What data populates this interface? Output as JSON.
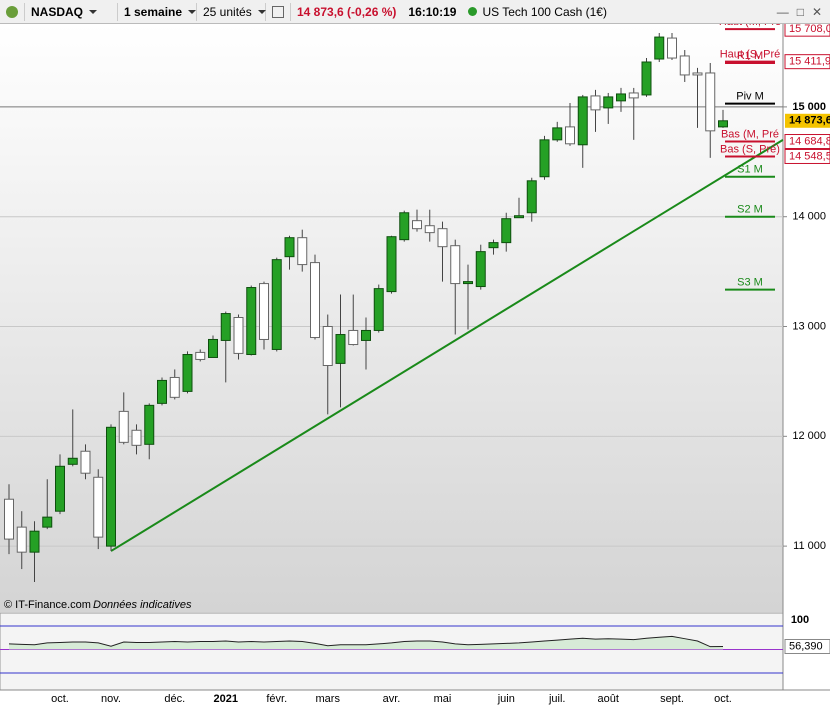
{
  "toolbar": {
    "symbol": "NASDAQ",
    "period": "1 semaine",
    "units": "25 unités",
    "quote": "14 873,6 (-0,26 %)",
    "time": "16:10:19",
    "instrument": "US Tech 100 Cash (1€)"
  },
  "chart_data": {
    "type": "candlestick",
    "source": "© IT-Finance.com",
    "note": "Données indicatives",
    "categories": [
      null,
      null,
      null,
      null,
      "oct.",
      null,
      null,
      null,
      "nov.",
      null,
      null,
      null,
      null,
      "déc.",
      null,
      null,
      null,
      "2021",
      null,
      null,
      null,
      "févr.",
      null,
      null,
      null,
      "mars",
      null,
      null,
      null,
      null,
      "avr.",
      null,
      null,
      null,
      "mai",
      null,
      null,
      null,
      null,
      "juin",
      null,
      null,
      null,
      "juil.",
      null,
      null,
      null,
      "août",
      null,
      null,
      null,
      null,
      "sept.",
      null,
      null,
      null,
      "oct."
    ],
    "open": [
      11427,
      11173,
      10945,
      11173,
      11318,
      11745,
      11864,
      11627,
      11000,
      12227,
      12055,
      11927,
      12300,
      12536,
      12409,
      12764,
      12718,
      12873,
      13082,
      12745,
      13391,
      12791,
      13636,
      13809,
      13582,
      13000,
      12664,
      12964,
      12873,
      12964,
      13318,
      13791,
      13964,
      13918,
      13891,
      13736,
      13391,
      13364,
      13718,
      13764,
      13991,
      14036,
      14364,
      14700,
      14818,
      14655,
      15100,
      14991,
      15055,
      15127,
      15109,
      15436,
      15627,
      15464,
      15309,
      15309,
      14818
    ],
    "high": [
      11564,
      11318,
      11227,
      11609,
      11836,
      12245,
      11927,
      11700,
      12109,
      12400,
      12109,
      12300,
      12536,
      12609,
      12773,
      12791,
      12918,
      13136,
      13109,
      13373,
      13409,
      13627,
      13827,
      13882,
      13655,
      13109,
      13291,
      13291,
      13082,
      13382,
      13827,
      14055,
      14064,
      14064,
      13955,
      13791,
      13564,
      13745,
      13791,
      14036,
      14173,
      14355,
      14736,
      14864,
      15036,
      15109,
      15155,
      15127,
      15173,
      15173,
      15445,
      15673,
      15673,
      15518,
      15355,
      15400,
      14973
    ],
    "low": [
      10927,
      10791,
      10673,
      11155,
      11291,
      11727,
      11609,
      10973,
      10955,
      11927,
      11836,
      11791,
      12282,
      12336,
      12391,
      12682,
      12718,
      12491,
      12700,
      12736,
      12791,
      12773,
      13518,
      13500,
      12882,
      12200,
      12264,
      12827,
      12609,
      12945,
      13300,
      13773,
      13864,
      13773,
      13409,
      12927,
      12973,
      13336,
      13655,
      13682,
      13991,
      13955,
      14336,
      14682,
      14645,
      14445,
      14773,
      14845,
      14955,
      14700,
      15091,
      15409,
      15427,
      15227,
      14809,
      14536,
      14809
    ],
    "close": [
      11064,
      10945,
      11136,
      11264,
      11727,
      11800,
      11664,
      11082,
      12082,
      11945,
      11918,
      12282,
      12509,
      12355,
      12745,
      12700,
      12882,
      13118,
      12755,
      13355,
      12882,
      13609,
      13809,
      13564,
      12900,
      12645,
      12927,
      12836,
      12964,
      13345,
      13818,
      14036,
      13891,
      13855,
      13727,
      13391,
      13409,
      13682,
      13764,
      13982,
      14009,
      14327,
      14700,
      14809,
      14664,
      15091,
      14973,
      15091,
      15118,
      15082,
      15409,
      15636,
      15445,
      15291,
      15291,
      14782,
      14873.6
    ],
    "up_color": "#25a025",
    "down_color": "#ffffff",
    "ylim": [
      10400,
      15755
    ],
    "yticks": [
      {
        "value": 11000,
        "label": "11 000"
      },
      {
        "value": 12000,
        "label": "12 000"
      },
      {
        "value": 13000,
        "label": "13 000"
      },
      {
        "value": 14000,
        "label": "14 000"
      },
      {
        "value": 15000,
        "label": "15 000"
      }
    ],
    "grid": true,
    "last": {
      "value": 14873.6,
      "label": "14 873,6",
      "color": "#f5c400"
    },
    "trendline": {
      "x": [
        8,
        60.7
      ],
      "values": [
        10955,
        14700
      ],
      "color": "#1a8a1a"
    },
    "levels": [
      {
        "name": "Haut (M, Pré",
        "value": 15708,
        "value_label": "15 708,0",
        "color": "#c8102e"
      },
      {
        "name": "Haut (S, Pré",
        "value": 15411.9,
        "value_label": "15 411,9",
        "color": "#c8102e"
      },
      {
        "name": "R1 M",
        "value": 15400,
        "color": "#c8102e"
      },
      {
        "name": "Piv M",
        "value": 15030,
        "color": "#000000"
      },
      {
        "name": "Bas (M, Pré",
        "value": 14684.8,
        "value_label": "14 684,8",
        "color": "#c8102e"
      },
      {
        "name": "Bas (S, Pré)",
        "value": 14548.5,
        "value_label": "14 548,5",
        "color": "#c8102e"
      },
      {
        "name": "S1 M",
        "value": 14364,
        "color": "#1a8a1a"
      },
      {
        "name": "S2 M",
        "value": 14000,
        "color": "#1a8a1a"
      },
      {
        "name": "S3 M",
        "value": 13336,
        "color": "#1a8a1a"
      }
    ],
    "indicator": {
      "values": [
        62,
        61,
        60,
        64,
        65,
        66,
        66,
        64,
        57,
        66,
        65,
        65,
        66,
        67,
        66,
        67,
        67,
        68,
        66,
        67,
        66,
        67,
        68,
        67,
        63,
        58,
        60,
        60,
        60,
        62,
        64,
        67,
        68,
        68,
        66,
        62,
        60,
        61,
        62,
        63,
        64,
        66,
        68,
        70,
        72,
        74,
        72,
        73,
        72,
        71,
        74,
        76,
        78,
        73,
        68,
        56,
        56.39
      ],
      "value_labels": [
        null,
        null,
        null,
        null,
        null,
        null,
        null,
        null,
        null,
        null,
        null,
        null,
        null,
        null,
        null,
        null,
        null,
        null,
        null,
        null,
        null,
        null,
        null,
        null,
        null,
        null,
        null,
        null,
        null,
        null,
        null,
        null,
        null,
        null,
        null,
        null,
        null,
        null,
        null,
        null,
        null,
        null,
        null,
        null,
        null,
        null,
        null,
        null,
        null,
        null,
        null,
        null,
        null,
        null,
        null,
        null,
        "56,390"
      ],
      "ylim": [
        0,
        100
      ],
      "yticks": [
        100
      ],
      "levels": [
        100,
        50,
        0
      ],
      "level_colors": [
        "#3333cc",
        "#9933cc",
        "#3333cc"
      ],
      "color": "#222222",
      "fill": "#cfe8cf"
    }
  }
}
